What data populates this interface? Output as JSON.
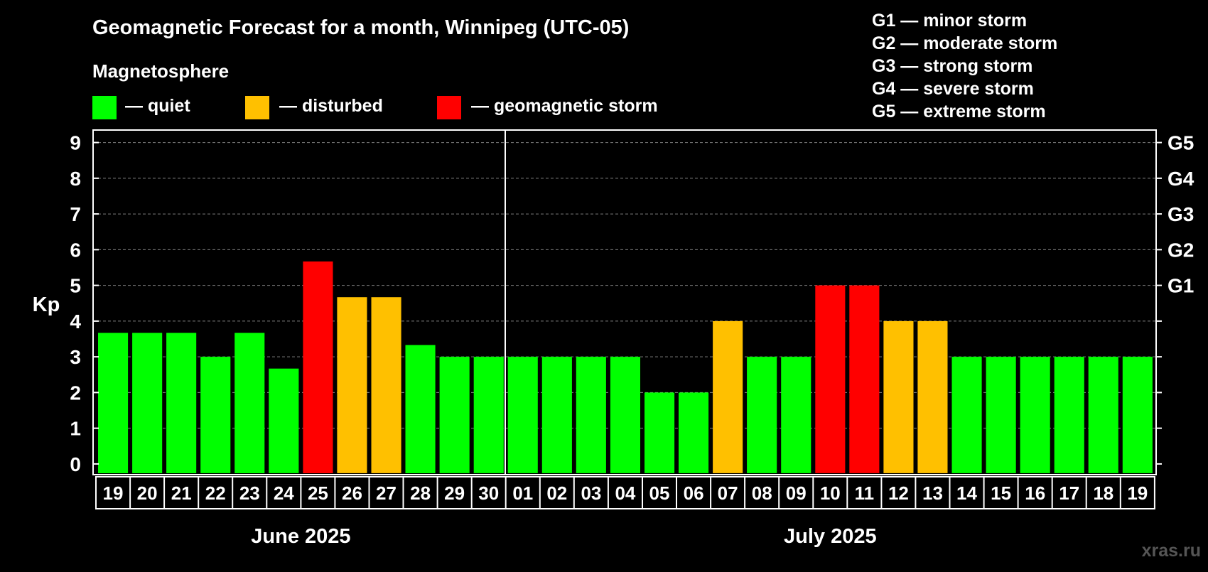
{
  "title": "Geomagnetic Forecast for a month, Winnipeg (UTC-05)",
  "legend": {
    "heading": "Magnetosphere",
    "items": [
      {
        "label": "— quiet",
        "color": "#00ff00"
      },
      {
        "label": "— disturbed",
        "color": "#ffc000"
      },
      {
        "label": "— geomagnetic storm",
        "color": "#ff0000"
      }
    ]
  },
  "storm_scale": [
    "G1 — minor storm",
    "G2 — moderate storm",
    "G3 — strong storm",
    "G4 — severe storm",
    "G5 — extreme storm"
  ],
  "watermark": "xras.ru",
  "chart_data": {
    "type": "bar",
    "ylabel": "Kp",
    "ylim": [
      -0.3,
      9.35
    ],
    "yticks": [
      0,
      1,
      2,
      3,
      4,
      5,
      6,
      7,
      8,
      9
    ],
    "right_axis_labels": [
      {
        "kp": 5,
        "label": "G1"
      },
      {
        "kp": 6,
        "label": "G2"
      },
      {
        "kp": 7,
        "label": "G3"
      },
      {
        "kp": 8,
        "label": "G4"
      },
      {
        "kp": 9,
        "label": "G5"
      }
    ],
    "months": [
      {
        "label": "June 2025",
        "categories": [
          "19",
          "20",
          "21",
          "22",
          "23",
          "24",
          "25",
          "26",
          "27",
          "28",
          "29",
          "30"
        ]
      },
      {
        "label": "July 2025",
        "categories": [
          "01",
          "02",
          "03",
          "04",
          "05",
          "06",
          "07",
          "08",
          "09",
          "10",
          "11",
          "12",
          "13",
          "14",
          "15",
          "16",
          "17",
          "18",
          "19"
        ]
      }
    ],
    "categories": [
      "19",
      "20",
      "21",
      "22",
      "23",
      "24",
      "25",
      "26",
      "27",
      "28",
      "29",
      "30",
      "01",
      "02",
      "03",
      "04",
      "05",
      "06",
      "07",
      "08",
      "09",
      "10",
      "11",
      "12",
      "13",
      "14",
      "15",
      "16",
      "17",
      "18",
      "19"
    ],
    "values": [
      3.67,
      3.67,
      3.67,
      3.0,
      3.67,
      2.67,
      5.67,
      4.67,
      4.67,
      3.33,
      3.0,
      3.0,
      3.0,
      3.0,
      3.0,
      3.0,
      2.0,
      2.0,
      4.0,
      3.0,
      3.0,
      5.0,
      5.0,
      4.0,
      4.0,
      3.0,
      3.0,
      3.0,
      3.0,
      3.0,
      3.0
    ],
    "levels": [
      "quiet",
      "quiet",
      "quiet",
      "quiet",
      "quiet",
      "quiet",
      "storm",
      "disturbed",
      "disturbed",
      "quiet",
      "quiet",
      "quiet",
      "quiet",
      "quiet",
      "quiet",
      "quiet",
      "quiet",
      "quiet",
      "disturbed",
      "quiet",
      "quiet",
      "storm",
      "storm",
      "disturbed",
      "disturbed",
      "quiet",
      "quiet",
      "quiet",
      "quiet",
      "quiet",
      "quiet"
    ],
    "level_colors": {
      "quiet": "#00ff00",
      "disturbed": "#ffc000",
      "storm": "#ff0000"
    }
  }
}
